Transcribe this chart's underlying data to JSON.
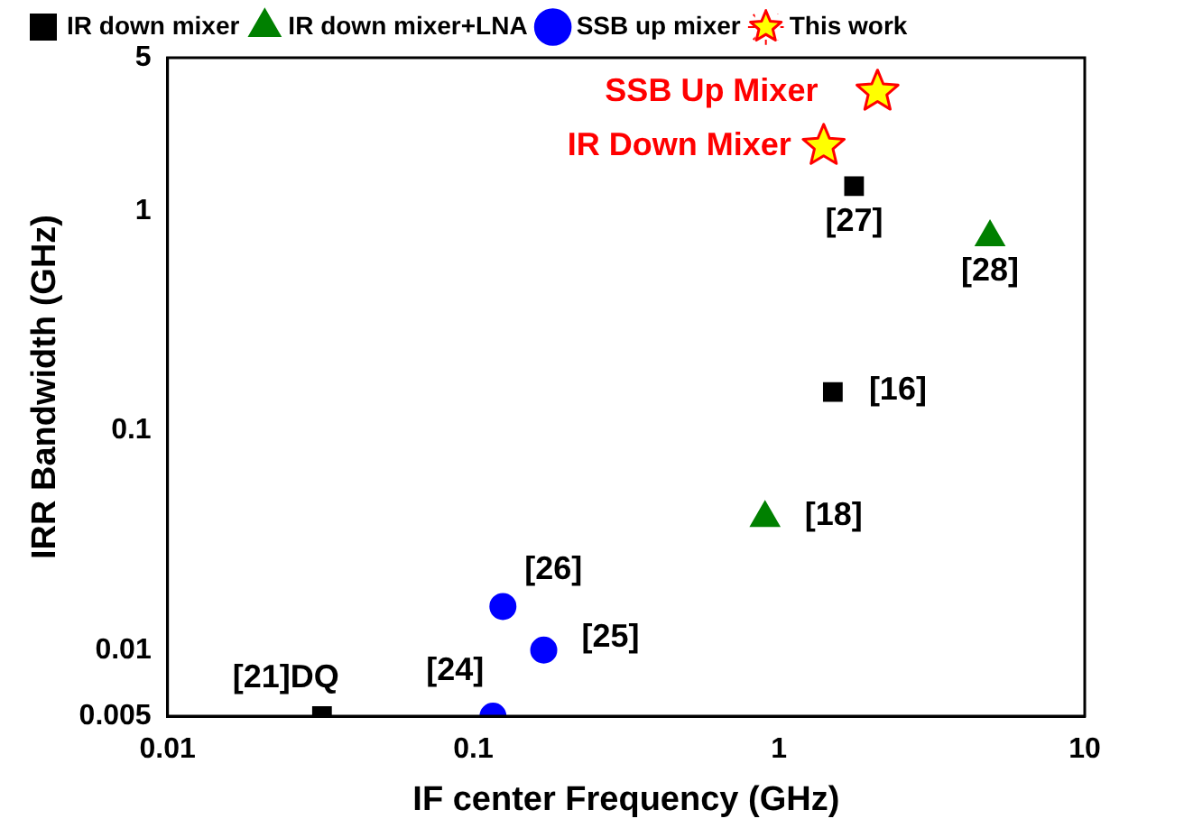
{
  "chart_data": {
    "type": "scatter",
    "xlabel": "IF center Frequency (GHz)",
    "ylabel": "IRR Bandwidth (GHz)",
    "log": "xy",
    "grid": false,
    "legend": "top",
    "xlim": [
      0.01,
      10
    ],
    "xticks": [
      0.01,
      0.1,
      1,
      10
    ],
    "ylim": [
      0.005,
      5
    ],
    "yticks": [
      0.005,
      0.01,
      0.1,
      1,
      5
    ],
    "series": [
      {
        "name": "IR down mixer",
        "color": "#000000",
        "marker": "square",
        "x": [
          0.032,
          1.76,
          1.5
        ],
        "values": [
          0.005,
          1.3,
          0.15
        ]
      },
      {
        "name": "IR down mixer+LNA",
        "color": "#008000",
        "marker": "triangle",
        "x": [
          4.9,
          0.9
        ],
        "values": [
          0.76,
          0.04
        ]
      },
      {
        "name": "SSB up mixer",
        "color": "#0000ff",
        "marker": "circle",
        "x": [
          0.125,
          0.17,
          0.116
        ],
        "values": [
          0.0158,
          0.01,
          0.005
        ]
      },
      {
        "name": "This work",
        "color": "#ffff00",
        "marker": "star",
        "x": [
          2.1,
          1.4
        ],
        "values": [
          3.5,
          1.98
        ]
      }
    ],
    "annotations": [
      {
        "text": "[27]",
        "x": 1.76,
        "y": 1.3
      },
      {
        "text": "[28]",
        "x": 4.9,
        "y": 0.76
      },
      {
        "text": "[16]",
        "x": 1.5,
        "y": 0.15
      },
      {
        "text": "[18]",
        "x": 0.9,
        "y": 0.04
      },
      {
        "text": "[26]",
        "x": 0.125,
        "y": 0.0158
      },
      {
        "text": "[25]",
        "x": 0.17,
        "y": 0.01
      },
      {
        "text": "[24]",
        "x": 0.116,
        "y": 0.005
      },
      {
        "text": "[21]DQ",
        "x": 0.032,
        "y": 0.005
      },
      {
        "text": "SSB Up Mixer",
        "x": 2.1,
        "y": 3.5
      },
      {
        "text": "IR Down Mixer",
        "x": 1.4,
        "y": 1.98
      }
    ]
  }
}
